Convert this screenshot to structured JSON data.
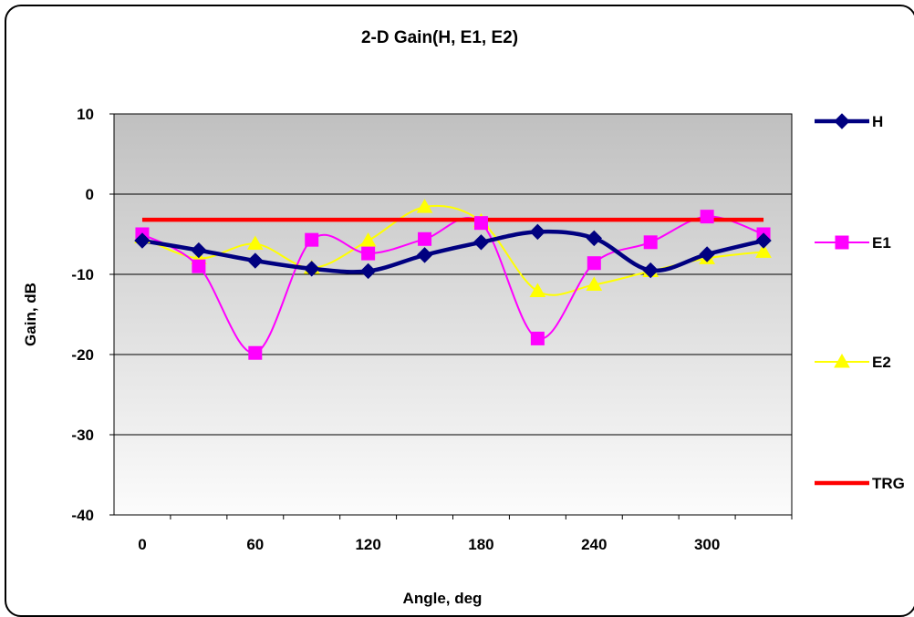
{
  "chart_data": {
    "type": "line",
    "title": "2-D Gain(H, E1, E2)",
    "xlabel": "Angle, deg",
    "ylabel": "Gain, dB",
    "xlim": [
      -15,
      345
    ],
    "ylim": [
      -40,
      10
    ],
    "x_ticks": [
      0,
      60,
      120,
      180,
      240,
      300
    ],
    "y_ticks": [
      10,
      0,
      -10,
      -20,
      -30,
      -40
    ],
    "grid": true,
    "legend_position": "right",
    "x": [
      0,
      30,
      60,
      90,
      120,
      150,
      180,
      210,
      240,
      270,
      300,
      330
    ],
    "series": [
      {
        "name": "H",
        "color": "#000080",
        "marker": "diamond",
        "values": [
          -5.8,
          -7.0,
          -8.3,
          -9.3,
          -9.6,
          -7.6,
          -6.0,
          -4.7,
          -5.5,
          -9.5,
          -7.5,
          -5.8
        ]
      },
      {
        "name": "E1",
        "color": "#ff00ff",
        "marker": "square",
        "values": [
          -5.0,
          -9.0,
          -19.8,
          -5.7,
          -7.4,
          -5.6,
          -3.6,
          -18.0,
          -8.6,
          -6.0,
          -2.8,
          -5.0
        ]
      },
      {
        "name": "E2",
        "color": "#ffff00",
        "marker": "triangle",
        "values": [
          -5.4,
          -8.0,
          -6.2,
          -9.2,
          -5.8,
          -1.6,
          -3.4,
          -12.1,
          -11.3,
          -9.6,
          -8.0,
          -7.2
        ]
      },
      {
        "name": "TRG",
        "color": "#ff0000",
        "marker": "none",
        "values": [
          -3.2,
          -3.2,
          -3.2,
          -3.2,
          -3.2,
          -3.2,
          -3.2,
          -3.2,
          -3.2,
          -3.2,
          -3.2,
          -3.2
        ]
      }
    ]
  }
}
